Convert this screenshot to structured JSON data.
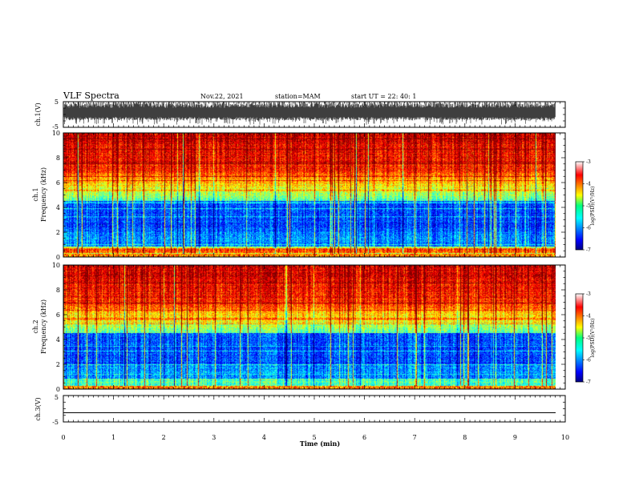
{
  "header": {
    "title": "VLF Spectra",
    "date": "Nov.22, 2021",
    "station": "station=MAM",
    "start": "start  UT =   22: 40: 1"
  },
  "chart_data": [
    {
      "type": "line",
      "name": "ch1-waveform",
      "ylabel": "ch.1(V)",
      "ylim": [
        -5,
        5
      ],
      "yticks": [
        "5",
        "-5"
      ],
      "xlim": [
        0,
        10
      ],
      "description_values": "dense noise waveform filling approx -3 to +5 V"
    },
    {
      "type": "heatmap",
      "name": "ch1-spectrogram",
      "ylabel": "ch.1\nFrequency (kHz)",
      "ylabel_line1": "ch.1",
      "ylabel_line2": "Frequency (kHz)",
      "ylim": [
        0,
        10
      ],
      "yticks": [
        "0",
        "2",
        "4",
        "6",
        "8",
        "10"
      ],
      "xlim": [
        0,
        9.83
      ],
      "colorbar": {
        "label": "log(PSD)(V²/Hz)",
        "range": [
          -7,
          -3
        ],
        "ticks": [
          "-3",
          "-4",
          "-5",
          "-6",
          "-7"
        ]
      }
    },
    {
      "type": "heatmap",
      "name": "ch2-spectrogram",
      "ylabel_line1": "ch.2",
      "ylabel_line2": "Frequency (kHz)",
      "ylim": [
        0,
        10
      ],
      "yticks": [
        "0",
        "2",
        "4",
        "6",
        "8",
        "10"
      ],
      "xlim": [
        0,
        9.83
      ],
      "colorbar": {
        "label": "log(PSD)(V²/Hz)",
        "range": [
          -7,
          -3
        ],
        "ticks": [
          "-3",
          "-4",
          "-5",
          "-6",
          "-7"
        ]
      }
    },
    {
      "type": "line",
      "name": "ch3-waveform",
      "ylabel": "ch.3(V)",
      "ylim": [
        -5,
        5
      ],
      "yticks": [
        "5",
        "-5"
      ],
      "values_constant": -1.5
    }
  ],
  "xaxis": {
    "label": "Time (min)",
    "ticks": [
      "0",
      "1",
      "2",
      "3",
      "4",
      "5",
      "6",
      "7",
      "8",
      "9",
      "10"
    ],
    "range": [
      0,
      10
    ]
  }
}
